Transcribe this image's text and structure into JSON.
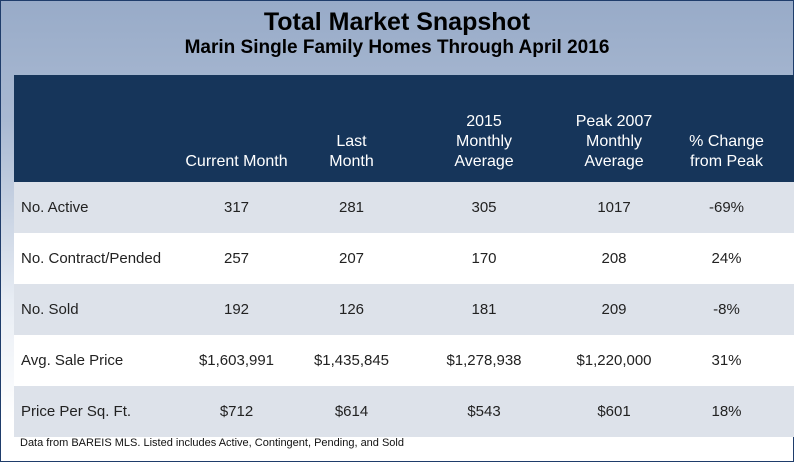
{
  "title": "Total Market Snapshot",
  "subtitle": "Marin Single Family Homes Through April 2016",
  "footnote": "Data from BAREIS MLS. Listed includes Active, Contingent, Pending, and Sold",
  "colors": {
    "header_bg": "#16355a",
    "row_shaded": "#dde2ea",
    "background_top": "#98abc8"
  },
  "chart_data": {
    "type": "table",
    "columns": [
      "",
      "Current Month",
      "Last Month",
      "2015 Monthly Average",
      "Peak 2007 Monthly Average",
      "% Change from Peak"
    ],
    "column_lines": [
      [
        ""
      ],
      [
        "Current Month"
      ],
      [
        "Last",
        "Month"
      ],
      [
        "2015",
        "Monthly",
        "Average"
      ],
      [
        "Peak 2007",
        "Monthly",
        "Average"
      ],
      [
        "% Change",
        "from Peak"
      ]
    ],
    "rows": [
      [
        "No. Active",
        "317",
        "281",
        "305",
        "1017",
        "-69%"
      ],
      [
        "No. Contract/Pended",
        "257",
        "207",
        "170",
        "208",
        "24%"
      ],
      [
        "No. Sold",
        "192",
        "126",
        "181",
        "209",
        "-8%"
      ],
      [
        "Avg. Sale Price",
        "$1,603,991",
        "$1,435,845",
        "$1,278,938",
        "$1,220,000",
        "31%"
      ],
      [
        "Price Per Sq. Ft.",
        "$712",
        "$614",
        "$543",
        "$601",
        "18%"
      ]
    ]
  }
}
